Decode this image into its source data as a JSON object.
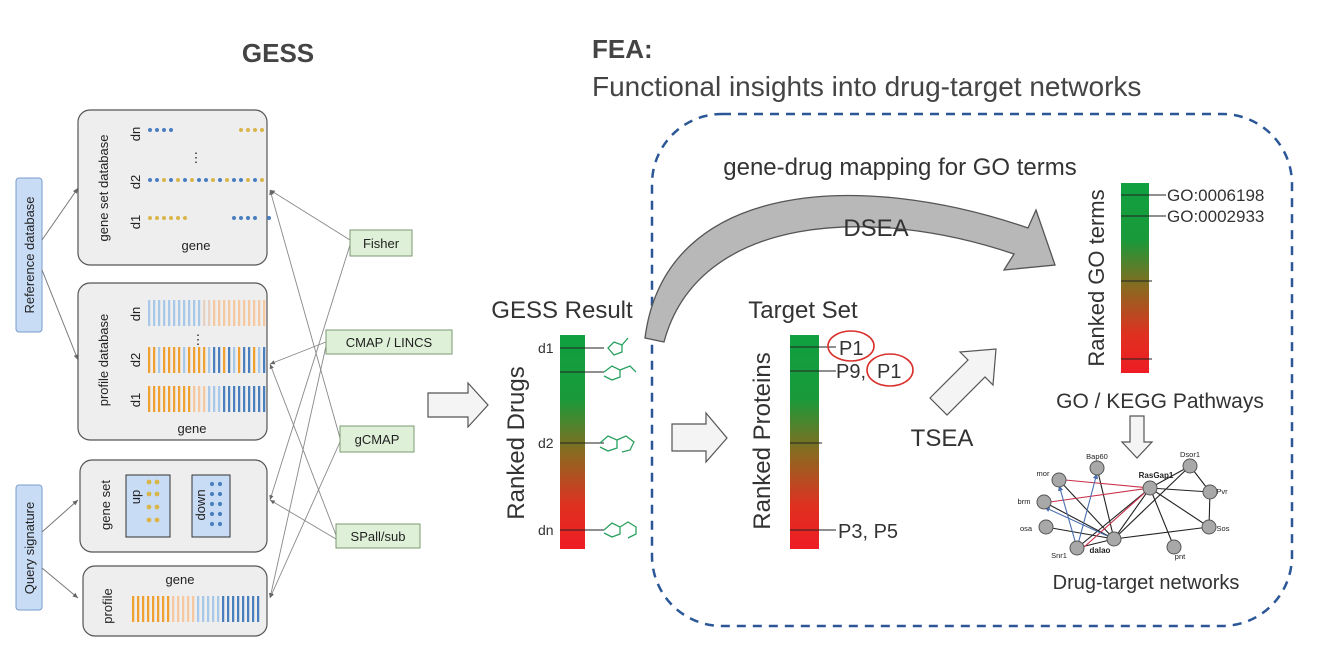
{
  "gess": {
    "title": "GESS",
    "reference_label": "Reference database",
    "query_label": "Query signature",
    "gene_set_db": {
      "title": "gene set database",
      "axis": "gene",
      "rows": [
        "dn",
        "d2",
        "d1"
      ],
      "ellipsis": "⋮"
    },
    "profile_db": {
      "title": "profile database",
      "axis": "gene",
      "rows": [
        "dn",
        "d2",
        "d1"
      ],
      "ellipsis": "⋮"
    },
    "query_gene_set": {
      "title": "gene set",
      "up": "up",
      "down": "down"
    },
    "query_profile": {
      "title": "profile",
      "axis": "gene"
    },
    "methods": [
      "Fisher",
      "CMAP / LINCS",
      "gCMAP",
      "SPall/sub"
    ]
  },
  "result": {
    "title": "GESS Result",
    "axis_label": "Ranked Drugs",
    "ticks": [
      "d1",
      "d2",
      "dn"
    ]
  },
  "fea": {
    "title": "FEA:",
    "subtitle": "Functional insights into drug-target networks",
    "mapping_label": "gene-drug mapping for GO terms",
    "dsea": "DSEA",
    "tsea": "TSEA",
    "target_set": {
      "title": "Target Set",
      "axis_label": "Ranked Proteins",
      "entries": [
        "P1",
        "P9,",
        "P1",
        "P3, P5"
      ]
    },
    "go_terms": {
      "axis_label": "Ranked GO terms",
      "entries": [
        "GO:0006198",
        "GO:0002933"
      ]
    },
    "pathways_label": "GO / KEGG Pathways",
    "network": {
      "label": "Drug-target networks",
      "nodes": [
        "Bap60",
        "mor",
        "RasGap1",
        "Dsor1",
        "brm",
        "Pvr",
        "osa",
        "Sos",
        "Snr1",
        "dalao",
        "pnt"
      ]
    }
  },
  "colors": {
    "gold": "#d9b54a",
    "blue": "#4a7fbf",
    "orange": "#f0a030",
    "light_blue": "#a8c8ea",
    "panel_bg": "#eeeeee",
    "method_bg": "#dff0d8",
    "label_bg": "#c9dcf5",
    "dashed_border": "#2b5797",
    "bar_green": "#1a9a3a",
    "bar_red": "#ee1c24"
  }
}
